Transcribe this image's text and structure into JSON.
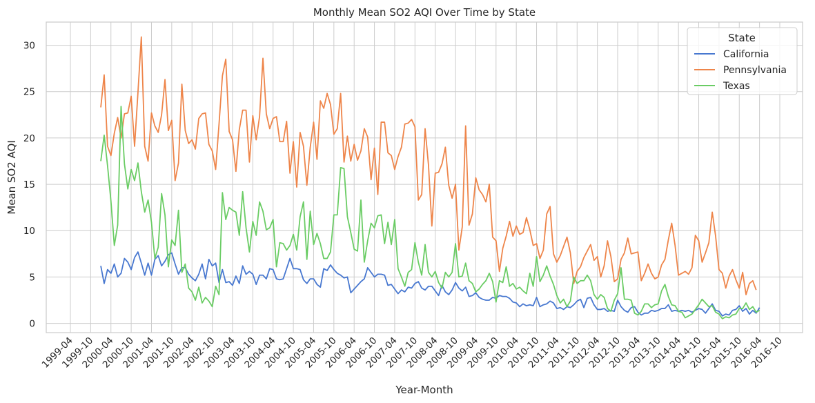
{
  "chart_data": {
    "type": "line",
    "title": "Monthly Mean SO2 AQI Over Time by State",
    "xlabel": "Year-Month",
    "ylabel": "Mean SO2 AQI",
    "x_start": "2000-01",
    "xtick_labels": [
      "1999-04",
      "1999-10",
      "2000-04",
      "2000-10",
      "2001-04",
      "2001-10",
      "2002-04",
      "2002-10",
      "2003-04",
      "2003-10",
      "2004-04",
      "2004-10",
      "2005-04",
      "2005-10",
      "2006-04",
      "2006-10",
      "2007-04",
      "2007-10",
      "2008-04",
      "2008-10",
      "2009-04",
      "2009-10",
      "2010-04",
      "2010-10",
      "2011-04",
      "2011-10",
      "2012-04",
      "2012-10",
      "2013-04",
      "2013-10",
      "2014-04",
      "2014-10",
      "2015-04",
      "2015-10",
      "2016-04",
      "2016-10"
    ],
    "yticks": [
      0,
      5,
      10,
      15,
      20,
      25,
      30
    ],
    "ylim": [
      -1,
      32.5
    ],
    "grid": true,
    "legend": {
      "title": "State",
      "placement": "top-right"
    },
    "series": [
      {
        "name": "California",
        "color": "#4878d0",
        "values": [
          6.2,
          4.3,
          5.8,
          5.4,
          6.4,
          5.0,
          5.4,
          7.0,
          6.6,
          5.8,
          7.1,
          7.7,
          6.5,
          5.2,
          6.5,
          5.2,
          6.9,
          7.3,
          6.2,
          6.7,
          7.4,
          7.6,
          6.4,
          5.3,
          6.0,
          6.0,
          5.3,
          4.9,
          4.6,
          5.3,
          6.4,
          4.8,
          6.9,
          6.2,
          6.5,
          4.4,
          5.8,
          4.4,
          4.5,
          4.1,
          5.1,
          4.3,
          6.2,
          5.3,
          5.6,
          5.3,
          4.2,
          5.2,
          5.2,
          4.8,
          5.9,
          5.8,
          4.8,
          4.7,
          4.8,
          5.9,
          7.0,
          5.9,
          5.9,
          5.8,
          4.7,
          4.3,
          4.8,
          4.8,
          4.2,
          3.9,
          5.9,
          5.7,
          6.3,
          5.8,
          5.4,
          5.2,
          4.9,
          5.0,
          3.3,
          3.7,
          4.1,
          4.5,
          4.8,
          6.0,
          5.5,
          5.0,
          5.3,
          5.3,
          5.2,
          4.1,
          4.2,
          3.7,
          3.2,
          3.6,
          3.4,
          3.9,
          3.8,
          4.3,
          4.5,
          3.8,
          3.6,
          4.0,
          4.0,
          3.5,
          3.0,
          4.1,
          3.4,
          3.1,
          3.6,
          4.4,
          3.8,
          3.5,
          3.9,
          2.9,
          3.0,
          3.3,
          2.8,
          2.6,
          2.5,
          2.5,
          2.8,
          2.7,
          3.0,
          2.9,
          2.9,
          2.7,
          2.3,
          2.2,
          1.8,
          2.1,
          1.9,
          2.0,
          1.9,
          2.8,
          1.8,
          2.0,
          2.1,
          2.4,
          2.2,
          1.6,
          1.7,
          1.5,
          1.8,
          1.7,
          2.0,
          2.4,
          2.6,
          1.7,
          2.7,
          2.8,
          2.0,
          1.5,
          1.5,
          1.6,
          1.3,
          1.4,
          1.3,
          2.5,
          1.8,
          1.4,
          1.2,
          1.7,
          1.8,
          1.2,
          0.9,
          1.1,
          1.1,
          1.4,
          1.3,
          1.4,
          1.6,
          1.6,
          2.0,
          1.3,
          1.4,
          1.3,
          1.4,
          1.3,
          1.4,
          1.2,
          1.4,
          1.6,
          1.5,
          1.1,
          1.6,
          2.1,
          1.4,
          1.3,
          0.8,
          1.0,
          0.9,
          1.4,
          1.5,
          1.9,
          1.3,
          1.6,
          1.0,
          1.4,
          1.1,
          1.7
        ]
      },
      {
        "name": "Pennsylvania",
        "color": "#ee854a",
        "values": [
          23.3,
          26.8,
          19.1,
          18.1,
          20.5,
          22.2,
          20.0,
          22.6,
          22.7,
          24.5,
          19.1,
          24.9,
          30.9,
          19.1,
          17.5,
          22.7,
          21.3,
          20.6,
          22.5,
          26.3,
          20.8,
          21.9,
          15.4,
          17.3,
          25.8,
          20.8,
          19.4,
          19.8,
          18.8,
          22.1,
          22.6,
          22.7,
          19.3,
          18.6,
          16.6,
          21.5,
          26.7,
          28.5,
          20.7,
          19.8,
          16.4,
          20.9,
          23.0,
          23.0,
          17.4,
          22.4,
          19.8,
          22.3,
          28.6,
          22.6,
          21.0,
          22.1,
          22.3,
          19.6,
          19.6,
          21.8,
          16.2,
          19.6,
          14.7,
          20.6,
          19.1,
          14.9,
          19.0,
          21.7,
          17.7,
          24.0,
          23.2,
          24.8,
          23.6,
          20.4,
          21.0,
          24.8,
          17.4,
          20.2,
          17.5,
          19.3,
          17.6,
          18.6,
          21.0,
          20.1,
          15.5,
          18.9,
          13.9,
          21.7,
          21.7,
          18.4,
          18.1,
          16.6,
          18.0,
          19.0,
          21.5,
          21.6,
          22.0,
          21.2,
          13.3,
          13.9,
          21.0,
          17.1,
          10.5,
          16.2,
          16.3,
          17.2,
          19.0,
          14.9,
          13.5,
          15.0,
          7.9,
          10.4,
          21.3,
          10.6,
          11.8,
          15.7,
          14.4,
          13.9,
          13.1,
          15.0,
          9.3,
          8.9,
          5.6,
          8.1,
          9.4,
          11.0,
          9.4,
          10.5,
          9.6,
          9.8,
          11.4,
          10.1,
          8.4,
          8.6,
          7.0,
          7.9,
          11.8,
          12.6,
          7.5,
          6.6,
          7.3,
          8.3,
          9.3,
          7.6,
          4.3,
          5.6,
          6.1,
          7.1,
          7.8,
          8.5,
          6.8,
          7.2,
          5.0,
          6.2,
          8.9,
          7.2,
          4.5,
          4.8,
          6.9,
          7.6,
          9.2,
          7.5,
          7.6,
          7.7,
          4.6,
          5.4,
          6.4,
          5.4,
          4.8,
          5.0,
          6.3,
          6.9,
          9.0,
          10.8,
          8.4,
          5.2,
          5.4,
          5.6,
          5.3,
          6.0,
          9.5,
          8.9,
          6.6,
          7.6,
          8.7,
          12.0,
          9.4,
          5.8,
          5.4,
          3.8,
          5.1,
          5.8,
          4.7,
          3.8,
          5.5,
          3.1,
          4.3,
          4.6,
          3.6
        ]
      },
      {
        "name": "Texas",
        "color": "#6acc64",
        "values": [
          17.5,
          20.3,
          17.0,
          13.2,
          8.4,
          10.6,
          23.4,
          17.2,
          14.5,
          16.6,
          15.4,
          17.3,
          14.2,
          12.0,
          13.3,
          10.9,
          7.0,
          8.2,
          14.0,
          11.7,
          6.1,
          9.0,
          8.4,
          12.2,
          5.5,
          6.4,
          3.8,
          3.4,
          2.5,
          3.9,
          2.2,
          2.8,
          2.4,
          1.8,
          4.0,
          3.1,
          14.1,
          11.2,
          12.5,
          12.2,
          12.0,
          9.5,
          14.2,
          10.3,
          7.7,
          11.0,
          9.5,
          13.1,
          12.1,
          10.1,
          10.3,
          11.2,
          6.1,
          8.7,
          8.6,
          7.9,
          8.4,
          9.6,
          7.9,
          11.5,
          13.1,
          6.9,
          12.1,
          8.5,
          9.7,
          8.6,
          7.0,
          7.0,
          7.7,
          11.7,
          11.7,
          16.8,
          16.7,
          11.5,
          9.8,
          8.0,
          7.8,
          13.3,
          6.6,
          8.9,
          10.8,
          10.3,
          11.6,
          11.7,
          8.6,
          10.9,
          8.5,
          11.2,
          5.9,
          5.0,
          4.0,
          5.5,
          5.8,
          8.7,
          6.6,
          5.2,
          8.5,
          5.5,
          5.0,
          5.6,
          4.4,
          3.8,
          5.5,
          5.0,
          5.5,
          8.6,
          5.0,
          5.1,
          6.5,
          4.6,
          4.3,
          3.4,
          3.7,
          4.2,
          4.6,
          5.4,
          4.5,
          2.3,
          4.6,
          4.4,
          6.1,
          4.0,
          4.3,
          3.7,
          3.9,
          3.5,
          3.2,
          5.4,
          4.0,
          7.2,
          4.5,
          5.2,
          6.2,
          5.1,
          4.2,
          3.0,
          2.2,
          2.6,
          1.8,
          2.4,
          5.0,
          4.3,
          4.6,
          4.6,
          5.2,
          4.6,
          3.1,
          2.6,
          3.1,
          2.8,
          1.6,
          1.3,
          2.5,
          3.2,
          6.0,
          2.6,
          2.6,
          2.5,
          1.1,
          0.9,
          1.3,
          2.1,
          2.1,
          1.7,
          2.0,
          2.1,
          3.5,
          4.2,
          2.9,
          2.0,
          1.9,
          1.3,
          1.2,
          0.6,
          0.8,
          1.0,
          1.5,
          2.0,
          2.6,
          2.2,
          1.8,
          1.9,
          1.2,
          1.0,
          0.5,
          0.7,
          0.6,
          0.9,
          1.0,
          1.6,
          1.6,
          2.2,
          1.5,
          1.8,
          1.2,
          1.4
        ]
      }
    ]
  }
}
